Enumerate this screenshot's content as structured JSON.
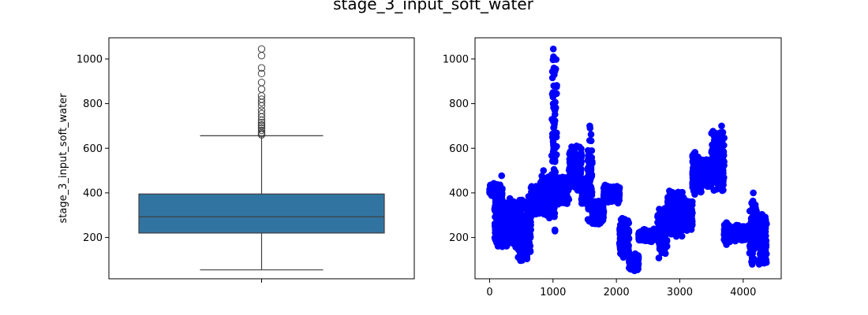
{
  "figure": {
    "title": "stage_3_input_soft_water"
  },
  "chart_data": [
    {
      "type": "box",
      "title": "",
      "xlabel": "",
      "ylabel": "stage_3_input_soft_water",
      "ylim": [
        15,
        1095
      ],
      "yticks": [
        200,
        400,
        600,
        800,
        1000
      ],
      "box_color": "#3274a1",
      "line_color": "#3f3f3f",
      "stats": {
        "min": 55,
        "q1": 220,
        "median": 293,
        "q3": 395,
        "max": 656
      },
      "outliers": [
        660,
        665,
        670,
        680,
        690,
        700,
        705,
        715,
        725,
        740,
        755,
        770,
        790,
        805,
        820,
        835,
        865,
        895,
        935,
        960,
        1015,
        1045
      ]
    },
    {
      "type": "scatter",
      "title": "",
      "xlabel": "",
      "ylabel": "",
      "xlim": [
        -230,
        4600
      ],
      "ylim": [
        15,
        1095
      ],
      "xticks": [
        0,
        1000,
        2000,
        3000,
        4000
      ],
      "yticks": [
        200,
        400,
        600,
        800,
        1000
      ],
      "marker_color": "#0000ff",
      "segments": [
        {
          "x_start": 0,
          "x_end": 80,
          "y_min": 380,
          "y_max": 450
        },
        {
          "x_start": 80,
          "x_end": 200,
          "y_min": 140,
          "y_max": 490
        },
        {
          "x_start": 200,
          "x_end": 450,
          "y_min": 150,
          "y_max": 380
        },
        {
          "x_start": 450,
          "x_end": 650,
          "y_min": 80,
          "y_max": 400
        },
        {
          "x_start": 650,
          "x_end": 800,
          "y_min": 300,
          "y_max": 440
        },
        {
          "x_start": 800,
          "x_end": 980,
          "y_min": 280,
          "y_max": 480
        },
        {
          "x_start": 980,
          "x_end": 1060,
          "y_min": 180,
          "y_max": 1050
        },
        {
          "x_start": 1060,
          "x_end": 1250,
          "y_min": 340,
          "y_max": 480
        },
        {
          "x_start": 1250,
          "x_end": 1450,
          "y_min": 400,
          "y_max": 620
        },
        {
          "x_start": 1450,
          "x_end": 1550,
          "y_min": 340,
          "y_max": 480
        },
        {
          "x_start": 1550,
          "x_end": 1620,
          "y_min": 230,
          "y_max": 705
        },
        {
          "x_start": 1620,
          "x_end": 1800,
          "y_min": 250,
          "y_max": 370
        },
        {
          "x_start": 1800,
          "x_end": 2050,
          "y_min": 350,
          "y_max": 440
        },
        {
          "x_start": 2050,
          "x_end": 2200,
          "y_min": 100,
          "y_max": 290
        },
        {
          "x_start": 2200,
          "x_end": 2350,
          "y_min": 50,
          "y_max": 130
        },
        {
          "x_start": 2350,
          "x_end": 2650,
          "y_min": 180,
          "y_max": 240
        },
        {
          "x_start": 2650,
          "x_end": 2800,
          "y_min": 90,
          "y_max": 350
        },
        {
          "x_start": 2800,
          "x_end": 3050,
          "y_min": 200,
          "y_max": 420
        },
        {
          "x_start": 3050,
          "x_end": 3200,
          "y_min": 220,
          "y_max": 380
        },
        {
          "x_start": 3200,
          "x_end": 3350,
          "y_min": 380,
          "y_max": 590
        },
        {
          "x_start": 3350,
          "x_end": 3500,
          "y_min": 420,
          "y_max": 560
        },
        {
          "x_start": 3500,
          "x_end": 3700,
          "y_min": 380,
          "y_max": 700
        },
        {
          "x_start": 3700,
          "x_end": 3800,
          "y_min": 160,
          "y_max": 280
        },
        {
          "x_start": 3800,
          "x_end": 4100,
          "y_min": 180,
          "y_max": 260
        },
        {
          "x_start": 4100,
          "x_end": 4200,
          "y_min": 70,
          "y_max": 400
        },
        {
          "x_start": 4200,
          "x_end": 4370,
          "y_min": 70,
          "y_max": 340
        }
      ],
      "peaks": [
        {
          "x": 1005,
          "y": 1045
        },
        {
          "x": 1008,
          "y": 1010
        },
        {
          "x": 1015,
          "y": 960
        },
        {
          "x": 1020,
          "y": 930
        },
        {
          "x": 1012,
          "y": 880
        },
        {
          "x": 1000,
          "y": 830
        },
        {
          "x": 1580,
          "y": 700
        },
        {
          "x": 1585,
          "y": 690
        },
        {
          "x": 3660,
          "y": 700
        },
        {
          "x": 3640,
          "y": 670
        },
        {
          "x": 850,
          "y": 500
        },
        {
          "x": 2320,
          "y": 55
        },
        {
          "x": 2290,
          "y": 60
        },
        {
          "x": 4160,
          "y": 400
        }
      ]
    }
  ]
}
